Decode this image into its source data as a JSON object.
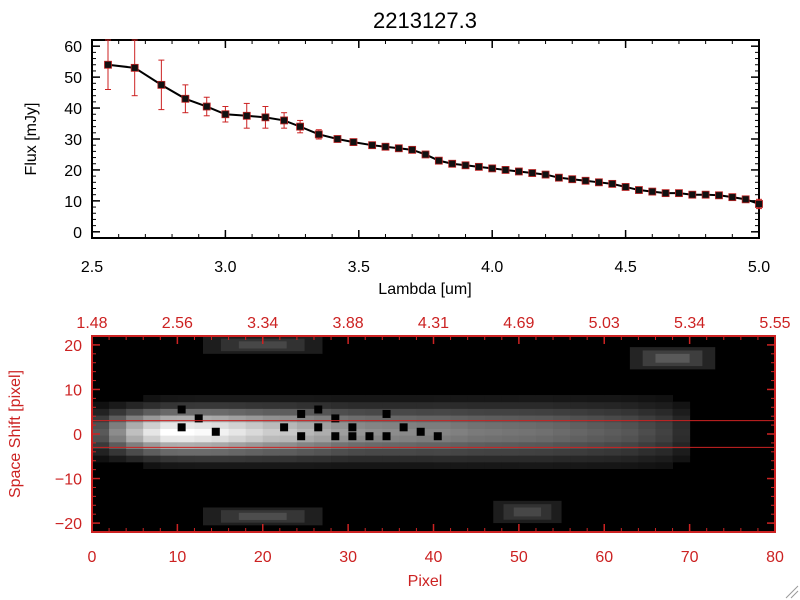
{
  "colors": {
    "background": "#ffffff",
    "axis": "#000000",
    "accent_red": "#cc2222",
    "data_line": "#000000",
    "marker": "#111111",
    "errorbar": "#cc2222",
    "image_bg": "#000000",
    "extraction_lines": "#cc2222"
  },
  "chart_data": [
    {
      "type": "line",
      "title": "2213127.3",
      "xlabel": "Lambda [um]",
      "ylabel": "Flux [mJy]",
      "xlim": [
        2.5,
        5.0
      ],
      "ylim": [
        -2,
        62
      ],
      "xticks": [
        2.5,
        3.0,
        3.5,
        4.0,
        4.5,
        5.0
      ],
      "xtick_labels": [
        "2.5",
        "3.0",
        "3.5",
        "4.0",
        "4.5",
        "5.0"
      ],
      "yticks": [
        0,
        10,
        20,
        30,
        40,
        50,
        60
      ],
      "ytick_labels": [
        "0",
        "10",
        "20",
        "30",
        "40",
        "50",
        "60"
      ],
      "grid": false,
      "series": [
        {
          "x": [
            2.56,
            2.66,
            2.76,
            2.85,
            2.93,
            3.0,
            3.08,
            3.15,
            3.22,
            3.28,
            3.35,
            3.42,
            3.48,
            3.55,
            3.6,
            3.65,
            3.7,
            3.75,
            3.8,
            3.85,
            3.9,
            3.95,
            4.0,
            4.05,
            4.1,
            4.15,
            4.2,
            4.25,
            4.3,
            4.35,
            4.4,
            4.45,
            4.5,
            4.55,
            4.6,
            4.65,
            4.7,
            4.75,
            4.8,
            4.85,
            4.9,
            4.95,
            5.0
          ],
          "y": [
            54,
            53,
            47.5,
            43,
            40.5,
            38,
            37.5,
            37,
            36,
            34,
            31.5,
            30,
            29,
            28,
            27.5,
            27,
            26.5,
            25,
            23,
            22,
            21.5,
            21,
            20.5,
            20,
            19.5,
            19,
            18.5,
            17.5,
            17,
            16.5,
            16,
            15.5,
            14.5,
            13.5,
            13,
            12.5,
            12.5,
            12,
            12,
            11.8,
            11.2,
            10.5,
            9
          ],
          "yerr": [
            8,
            9,
            8,
            4.5,
            3,
            2.5,
            4,
            3.5,
            2.5,
            2,
            1.5,
            1,
            0.8,
            0.8,
            0.8,
            0.8,
            0.8,
            0.8,
            0.8,
            0.8,
            0.8,
            0.8,
            0.8,
            0.8,
            0.8,
            0.8,
            0.8,
            0.8,
            0.8,
            0.8,
            0.8,
            0.8,
            0.8,
            0.8,
            0.8,
            0.8,
            0.8,
            0.8,
            0.8,
            0.8,
            1,
            1,
            1.5
          ]
        }
      ]
    },
    {
      "type": "heatmap",
      "xlabel": "Pixel",
      "ylabel": "Space Shift [pixel]",
      "xlim": [
        0,
        80
      ],
      "ylim": [
        -22,
        22
      ],
      "xticks": [
        0,
        10,
        20,
        30,
        40,
        50,
        60,
        70,
        80
      ],
      "xtick_labels": [
        "0",
        "10",
        "20",
        "30",
        "40",
        "50",
        "60",
        "70",
        "80"
      ],
      "yticks": [
        -20,
        -10,
        0,
        10,
        20
      ],
      "ytick_labels": [
        "−20",
        "−10",
        "0",
        "10",
        "20"
      ],
      "top_axis_label_positions": [
        0,
        10,
        20,
        30,
        40,
        50,
        60,
        70,
        80
      ],
      "top_axis_labels": [
        "1.48",
        "2.56",
        "3.34",
        "3.88",
        "4.31",
        "4.69",
        "5.03",
        "5.34",
        "5.55"
      ],
      "aperture_lines_y": [
        3,
        -3
      ],
      "trace": {
        "center_y": 0.5,
        "peak_x": 7,
        "intensity_by_pixel_step": [
          0.35,
          0.55,
          0.75,
          0.9,
          1.0,
          1.0,
          0.98,
          0.95,
          0.9,
          0.85,
          0.8,
          0.78,
          0.72,
          0.68,
          0.62,
          0.58,
          0.56,
          0.55,
          0.54,
          0.52,
          0.52,
          0.5,
          0.48,
          0.47,
          0.46,
          0.45,
          0.44,
          0.42,
          0.4,
          0.38,
          0.36,
          0.34,
          0.3,
          0.26,
          0.18
        ]
      },
      "faint_blobs": [
        {
          "x": 20,
          "y": 20,
          "w": 14,
          "h": 4,
          "v": 0.28
        },
        {
          "x": 68,
          "y": 17,
          "w": 10,
          "h": 5,
          "v": 0.35
        },
        {
          "x": 20,
          "y": -18.5,
          "w": 14,
          "h": 4,
          "v": 0.3
        },
        {
          "x": 51,
          "y": -17.5,
          "w": 8,
          "h": 5,
          "v": 0.28
        }
      ],
      "bad_pixels": [
        [
          10.5,
          5.5
        ],
        [
          10.5,
          1.5
        ],
        [
          12.5,
          3.5
        ],
        [
          14.5,
          0.5
        ],
        [
          22.5,
          1.5
        ],
        [
          24.5,
          4.5
        ],
        [
          24.5,
          -0.5
        ],
        [
          26.5,
          5.5
        ],
        [
          26.5,
          1.5
        ],
        [
          28.5,
          3.5
        ],
        [
          28.5,
          -0.5
        ],
        [
          30.5,
          1.5
        ],
        [
          30.5,
          -0.5
        ],
        [
          32.5,
          -0.5
        ],
        [
          34.5,
          4.5
        ],
        [
          34.5,
          -0.5
        ],
        [
          36.5,
          1.5
        ],
        [
          38.5,
          0.5
        ],
        [
          40.5,
          -0.5
        ]
      ]
    }
  ]
}
